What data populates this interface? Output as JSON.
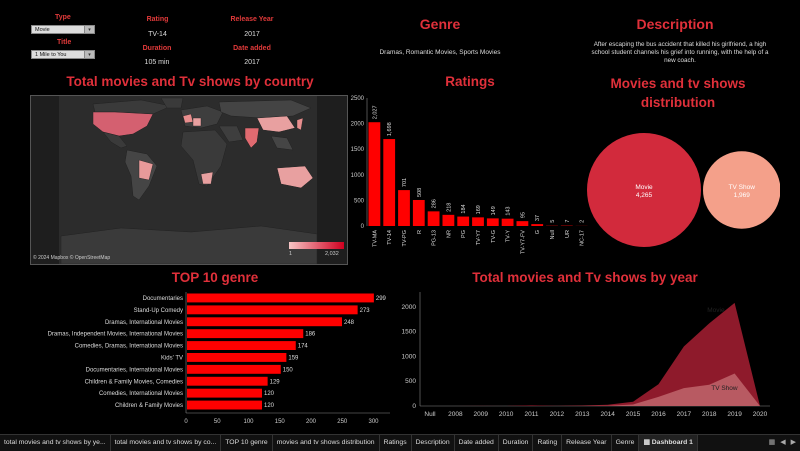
{
  "filters": {
    "type_label": "Type",
    "type_value": "Movie",
    "title_label": "Title",
    "title_value": "1 Mile to You"
  },
  "details": {
    "rating_label": "Rating",
    "rating_value": "TV-14",
    "duration_label": "Duration",
    "duration_value": "105 min",
    "release_label": "Release Year",
    "release_value": "2017",
    "date_label": "Date added",
    "date_value": "2017",
    "genre_title": "Genre",
    "genre_value": "Dramas, Romantic Movies, Sports Movies",
    "description_title": "Description",
    "description_value": "After escaping the bus accident that killed his girlfriend, a high school student channels his grief into running, with the help of a new coach."
  },
  "map": {
    "title": "Total movies and Tv shows by country",
    "attribution": "© 2024 Mapbox © OpenStreetMap",
    "legend_min": "1",
    "legend_max": "2,032"
  },
  "ratings_chart": {
    "title": "Ratings",
    "chart_data": {
      "type": "bar",
      "categories": [
        "TV-MA",
        "TV-14",
        "TV-PG",
        "R",
        "PG-13",
        "NR",
        "PG",
        "TV-Y7",
        "TV-G",
        "TV-Y",
        "TV-Y7-FV",
        "G",
        "Null",
        "UR",
        "NC-17"
      ],
      "values": [
        2027,
        1698,
        701,
        508,
        286,
        218,
        184,
        169,
        149,
        143,
        95,
        37,
        5,
        7,
        2
      ],
      "labels": [
        "2,027",
        "1,698",
        "701",
        "508",
        "286",
        "218",
        "184",
        "169",
        "149",
        "143",
        "95",
        "37",
        "5",
        "7",
        "2"
      ],
      "yticks": [
        0,
        500,
        1000,
        1500,
        2000,
        2500
      ],
      "ytick_labels": [
        "0",
        "500",
        "1000",
        "1500",
        "2000",
        "2500"
      ],
      "ylim": [
        0,
        2500
      ]
    }
  },
  "distribution": {
    "title": "Movies and tv shows distribution",
    "chart_data": {
      "type": "bubble",
      "items": [
        {
          "name": "Movie",
          "value": 4265,
          "label": "4,265",
          "color": "#d22a3c"
        },
        {
          "name": "TV Show",
          "value": 1969,
          "label": "1,969",
          "color": "#f4a08a"
        }
      ]
    }
  },
  "top_genre": {
    "title": "TOP 10 genre",
    "chart_data": {
      "type": "bar",
      "orientation": "horizontal",
      "categories": [
        "Documentaries",
        "Stand-Up Comedy",
        "Dramas, International Movies",
        "Dramas, Independent Movies, International Movies",
        "Comedies, Dramas, International Movies",
        "Kids' TV",
        "Documentaries, International Movies",
        "Children & Family Movies, Comedies",
        "Comedies, International Movies",
        "Children & Family Movies"
      ],
      "values": [
        299,
        273,
        248,
        186,
        174,
        159,
        150,
        129,
        120,
        120
      ],
      "xticks": [
        0,
        50,
        100,
        150,
        200,
        250,
        300
      ],
      "xtick_labels": [
        "0",
        "50",
        "100",
        "150",
        "200",
        "250",
        "300"
      ],
      "xlim": [
        0,
        320
      ]
    }
  },
  "by_year": {
    "title": "Total movies and Tv shows by year",
    "chart_data": {
      "type": "area",
      "categories": [
        "Null",
        "2008",
        "2009",
        "2010",
        "2011",
        "2012",
        "2013",
        "2014",
        "2015",
        "2016",
        "2017",
        "2018",
        "2019",
        "2020"
      ],
      "series": [
        {
          "name": "Movie",
          "values": [
            0,
            1,
            2,
            1,
            13,
            3,
            6,
            19,
            56,
            253,
            839,
            1237,
            1424,
            0
          ],
          "color": "#8e1a2b",
          "label": "Movie"
        },
        {
          "name": "TV Show",
          "values": [
            0,
            0,
            0,
            0,
            0,
            0,
            5,
            6,
            30,
            185,
            361,
            429,
            656,
            0
          ],
          "color": "#b85a62",
          "label": "TV Show"
        }
      ],
      "yticks": [
        0,
        500,
        1000,
        1500,
        2000
      ],
      "ytick_labels": [
        "0",
        "500",
        "1000",
        "1500",
        "2000"
      ],
      "ylim": [
        0,
        2300
      ]
    }
  },
  "tabs": [
    "total movies and tv shows by ye...",
    "total movies and tv shows by co...",
    "TOP 10 genre",
    "movies and tv shows distribution",
    "Ratings",
    "Description",
    "Date added",
    "Duration",
    "Rating",
    "Release Year",
    "Genre",
    "Dashboard 1"
  ],
  "colors": {
    "accent": "#e0303a",
    "bar": "#ff0000"
  }
}
